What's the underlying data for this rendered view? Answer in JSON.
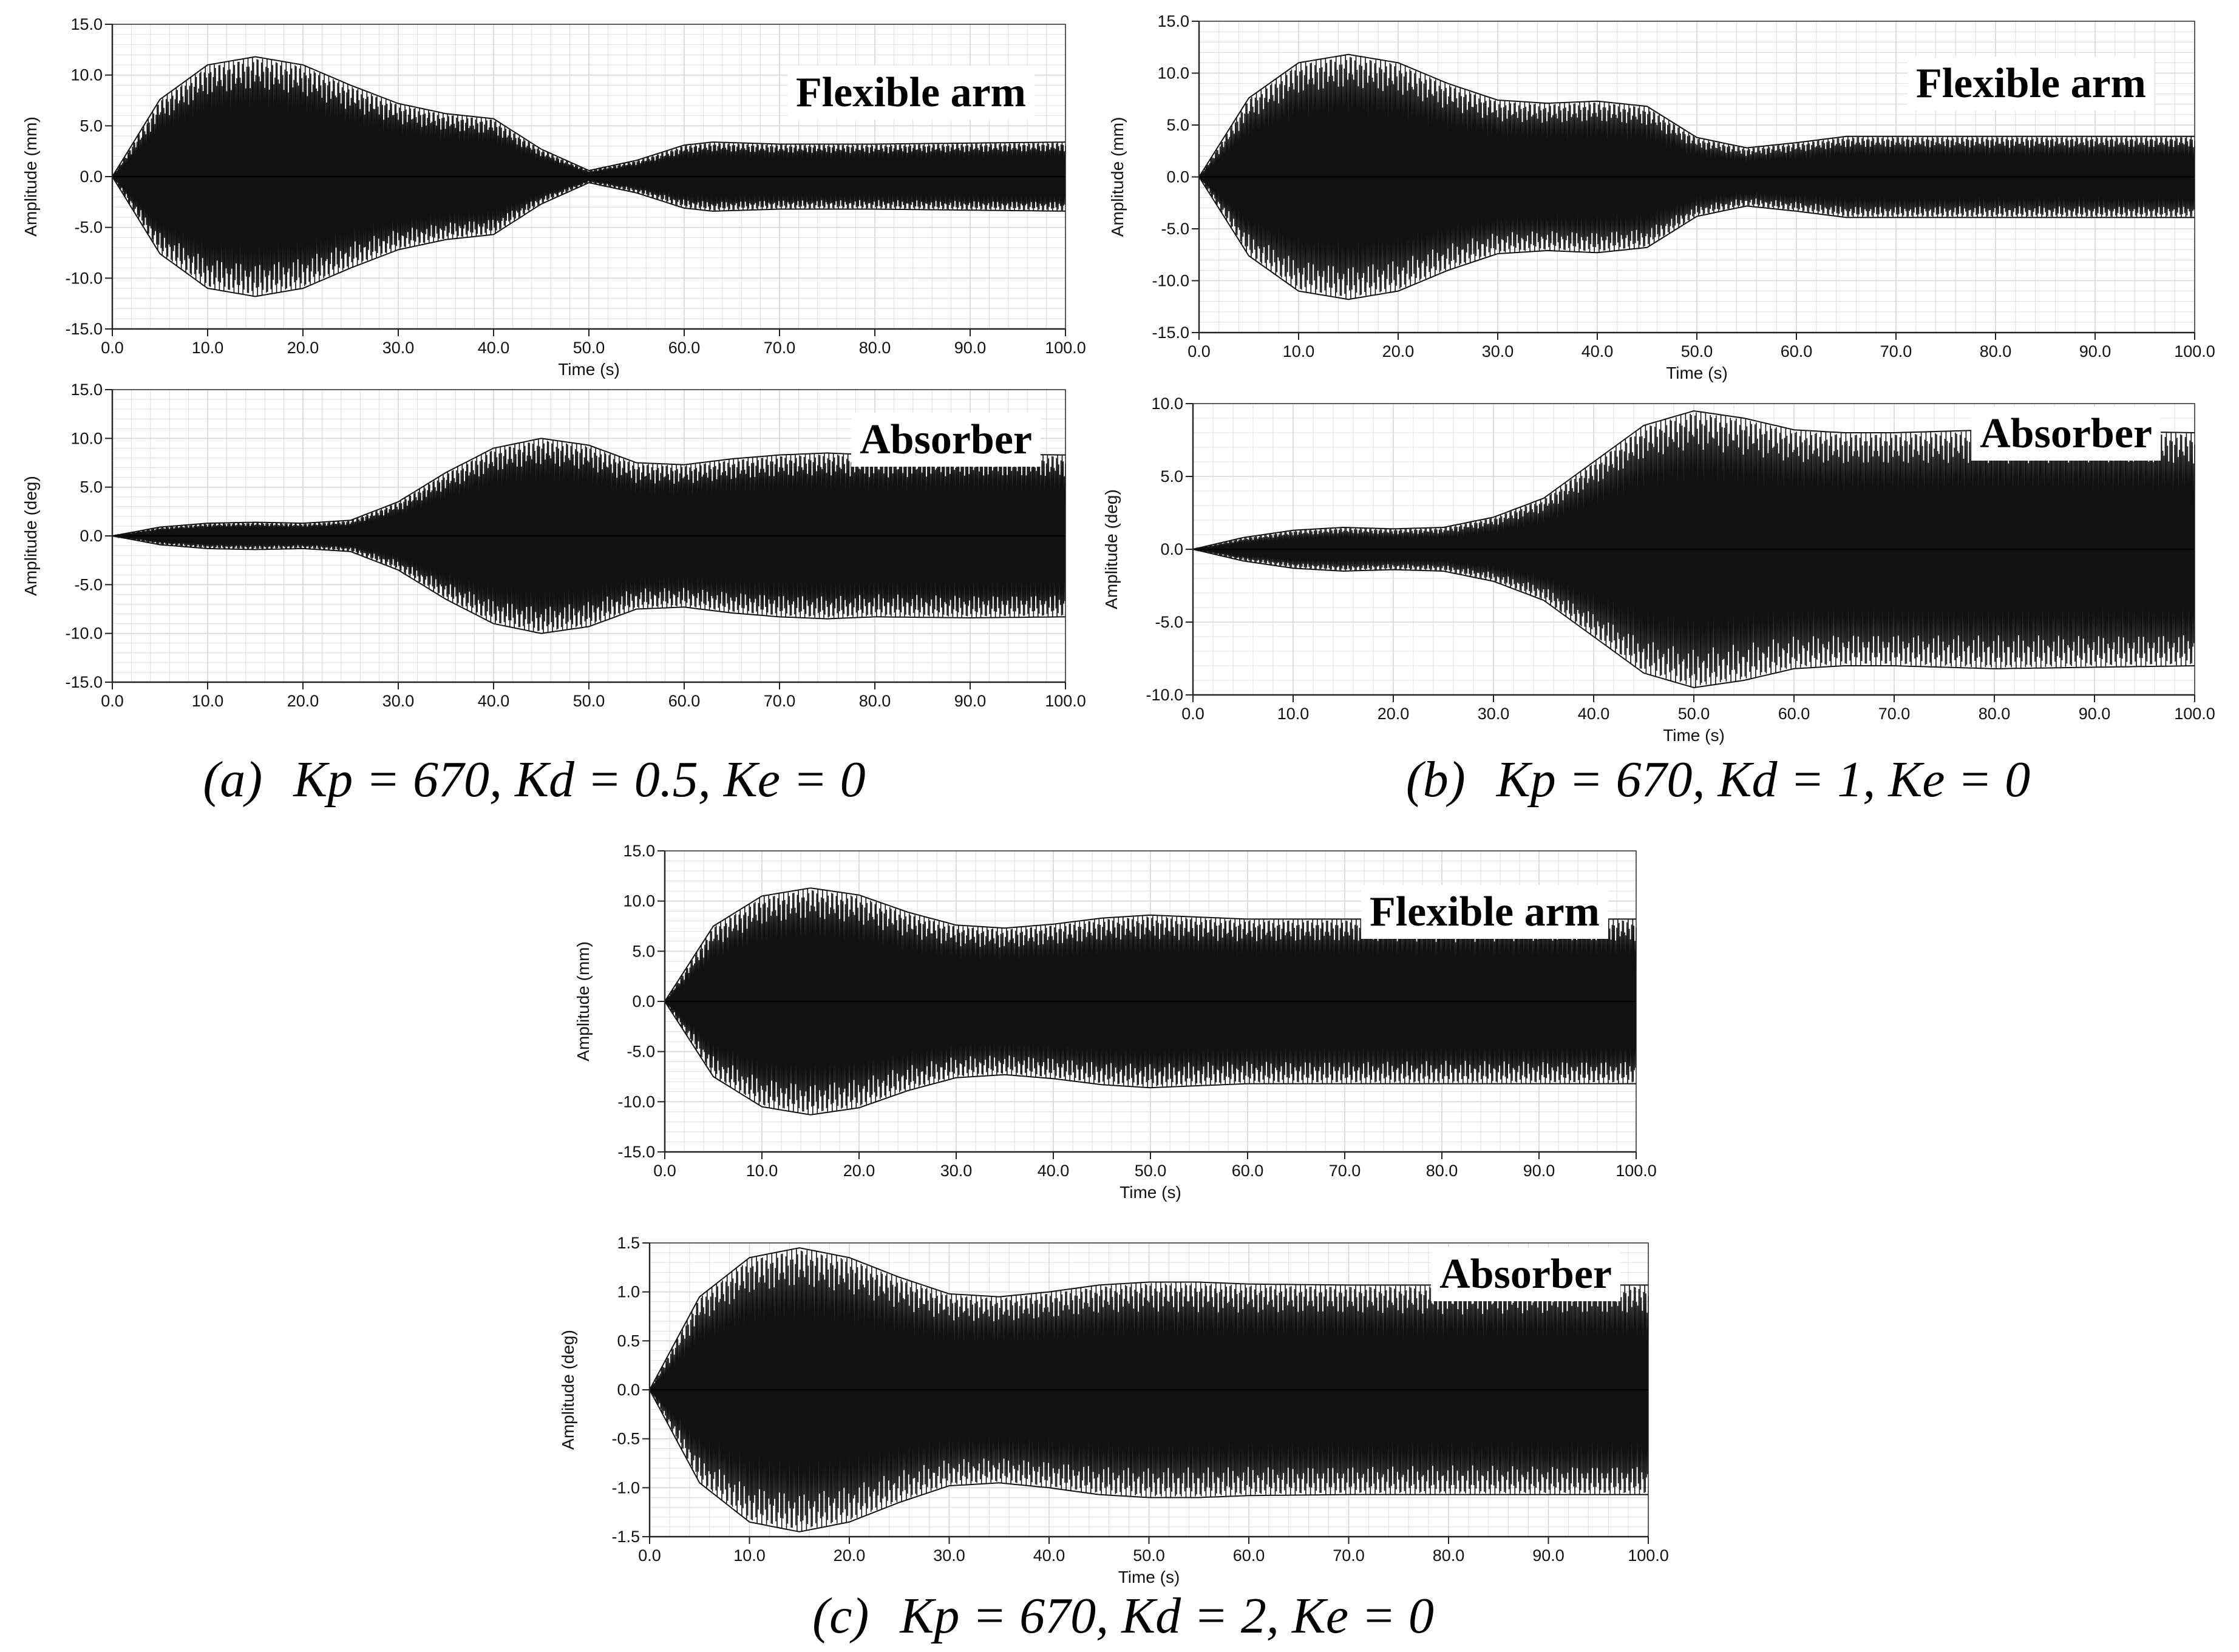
{
  "colors": {
    "signal": "#111111",
    "grid": "#d6d6d6",
    "axis": "#222222",
    "zero_line": "#000000"
  },
  "chart_data": [
    {
      "type": "line",
      "title": "Flexible arm",
      "xlabel": "Time (s)",
      "ylabel": "Amplitude (mm)",
      "xlim": [
        0,
        100
      ],
      "ylim": [
        -15,
        15
      ],
      "x_ticks": [
        "0.0",
        "10.0",
        "20.0",
        "30.0",
        "40.0",
        "50.0",
        "60.0",
        "70.0",
        "80.0",
        "90.0",
        "100.0"
      ],
      "y_ticks": [
        "-15.0",
        "-10.0",
        "-5.0",
        "0.0",
        "5.0",
        "10.0",
        "15.0"
      ],
      "grid": true,
      "envelope": {
        "t": [
          0,
          5,
          10,
          15,
          20,
          25,
          30,
          35,
          40,
          45,
          50,
          55,
          60,
          63,
          70,
          80,
          90,
          100
        ],
        "a": [
          0,
          7.6,
          11,
          11.8,
          11,
          9,
          7.2,
          6.2,
          5.7,
          2.7,
          0.6,
          1.6,
          3.1,
          3.4,
          3.2,
          3.2,
          3.3,
          3.4
        ]
      },
      "series": [
        {
          "values": []
        }
      ]
    },
    {
      "type": "line",
      "title": "Absorber",
      "xlabel": "",
      "ylabel": "Amplitude (deg)",
      "xlim": [
        0,
        100
      ],
      "ylim": [
        -15,
        15
      ],
      "x_ticks": [
        "0.0",
        "10.0",
        "20.0",
        "30.0",
        "40.0",
        "50.0",
        "60.0",
        "70.0",
        "80.0",
        "90.0",
        "100.0"
      ],
      "y_ticks": [
        "-15.0",
        "-10.0",
        "-5.0",
        "0.0",
        "5.0",
        "10.0",
        "15.0"
      ],
      "grid": true,
      "envelope": {
        "t": [
          0,
          5,
          10,
          15,
          20,
          25,
          30,
          35,
          40,
          45,
          50,
          55,
          60,
          65,
          70,
          75,
          80,
          90,
          100
        ],
        "a": [
          0,
          0.9,
          1.3,
          1.4,
          1.3,
          1.6,
          3.5,
          6.5,
          9,
          10,
          9.3,
          7.5,
          7.3,
          7.9,
          8.3,
          8.5,
          8.3,
          8.4,
          8.3
        ]
      },
      "series": [
        {
          "values": []
        }
      ]
    },
    {
      "type": "line",
      "title": "Flexible arm",
      "xlabel": "Time (s)",
      "ylabel": "Amplitude (mm)",
      "xlim": [
        0,
        100
      ],
      "ylim": [
        -15,
        15
      ],
      "x_ticks": [
        "0.0",
        "10.0",
        "20.0",
        "30.0",
        "40.0",
        "50.0",
        "60.0",
        "70.0",
        "80.0",
        "90.0",
        "100.0"
      ],
      "y_ticks": [
        "-15.0",
        "-10.0",
        "-5.0",
        "0.0",
        "5.0",
        "10.0",
        "15.0"
      ],
      "grid": true,
      "envelope": {
        "t": [
          0,
          5,
          10,
          15,
          20,
          25,
          30,
          35,
          40,
          45,
          50,
          55,
          60,
          65,
          70,
          80,
          90,
          100
        ],
        "a": [
          0,
          7.6,
          11,
          11.8,
          11,
          9,
          7.4,
          7.1,
          7.3,
          6.8,
          3.8,
          2.8,
          3.3,
          3.9,
          3.9,
          3.9,
          3.9,
          3.9
        ]
      },
      "series": [
        {
          "values": []
        }
      ]
    },
    {
      "type": "line",
      "title": "Absorber",
      "xlabel": "Time (s)",
      "ylabel": "Amplitude (deg)",
      "xlim": [
        0,
        100
      ],
      "ylim": [
        -10,
        10
      ],
      "x_ticks": [
        "0.0",
        "10.0",
        "20.0",
        "30.0",
        "40.0",
        "50.0",
        "60.0",
        "70.0",
        "80.0",
        "90.0",
        "100.0"
      ],
      "y_ticks": [
        "-10.0",
        "-5.0",
        "0.0",
        "5.0",
        "10.0"
      ],
      "grid": true,
      "envelope": {
        "t": [
          0,
          5,
          10,
          15,
          20,
          25,
          30,
          35,
          40,
          45,
          50,
          55,
          60,
          65,
          70,
          80,
          90,
          100
        ],
        "a": [
          0,
          0.8,
          1.3,
          1.5,
          1.4,
          1.5,
          2.2,
          3.5,
          6,
          8.5,
          9.5,
          9,
          8.2,
          8,
          8,
          8.2,
          8.1,
          8
        ]
      },
      "series": [
        {
          "values": []
        }
      ]
    },
    {
      "type": "line",
      "title": "Flexible arm",
      "xlabel": "Time (s)",
      "ylabel": "Amplitude (mm)",
      "xlim": [
        0,
        100
      ],
      "ylim": [
        -15,
        15
      ],
      "x_ticks": [
        "0.0",
        "10.0",
        "20.0",
        "30.0",
        "40.0",
        "50.0",
        "60.0",
        "70.0",
        "80.0",
        "90.0",
        "100.0"
      ],
      "y_ticks": [
        "-15.0",
        "-10.0",
        "-5.0",
        "0.0",
        "5.0",
        "10.0",
        "15.0"
      ],
      "grid": true,
      "envelope": {
        "t": [
          0,
          5,
          10,
          15,
          20,
          25,
          30,
          35,
          40,
          45,
          50,
          55,
          60,
          70,
          80,
          90,
          100
        ],
        "a": [
          0,
          7.5,
          10.5,
          11.3,
          10.6,
          8.9,
          7.6,
          7.3,
          7.7,
          8.3,
          8.6,
          8.4,
          8.2,
          8.2,
          8.2,
          8.2,
          8.2
        ]
      },
      "series": [
        {
          "values": []
        }
      ]
    },
    {
      "type": "line",
      "title": "Absorber",
      "xlabel": "Time (s)",
      "ylabel": "Amplitude (deg)",
      "xlim": [
        0,
        100
      ],
      "ylim": [
        -1.5,
        1.5
      ],
      "x_ticks": [
        "0.0",
        "10.0",
        "20.0",
        "30.0",
        "40.0",
        "50.0",
        "60.0",
        "70.0",
        "80.0",
        "90.0",
        "100.0"
      ],
      "y_ticks": [
        "-1.5",
        "-1.0",
        "-0.5",
        "0.0",
        "0.5",
        "1.0",
        "1.5"
      ],
      "grid": true,
      "envelope": {
        "t": [
          0,
          5,
          10,
          15,
          20,
          25,
          30,
          35,
          40,
          45,
          50,
          55,
          60,
          70,
          80,
          90,
          100
        ],
        "a": [
          0,
          0.95,
          1.35,
          1.45,
          1.35,
          1.15,
          0.98,
          0.95,
          1.0,
          1.07,
          1.1,
          1.1,
          1.08,
          1.07,
          1.07,
          1.07,
          1.07
        ]
      },
      "series": [
        {
          "values": []
        }
      ]
    }
  ],
  "captions": [
    {
      "label": "(a)",
      "equation": "Kp = 670, Kd = 0.5, Ke = 0"
    },
    {
      "label": "(b)",
      "equation": "Kp = 670, Kd = 1, Ke = 0"
    },
    {
      "label": "(c)",
      "equation": "Kp = 670, Kd = 2, Ke = 0"
    }
  ]
}
